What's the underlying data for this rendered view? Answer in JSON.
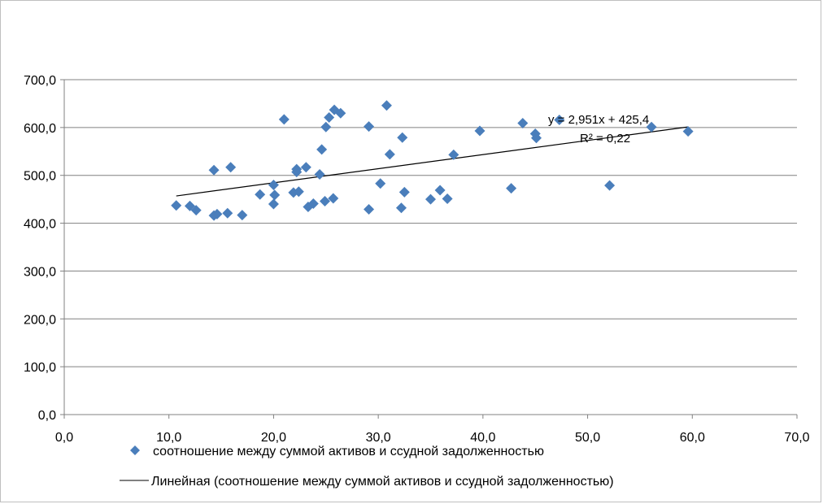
{
  "chart_data": {
    "type": "scatter",
    "title": "",
    "xlabel": "",
    "ylabel": "",
    "xlim": [
      0,
      70
    ],
    "ylim": [
      0,
      700
    ],
    "x_ticks": [
      "0,0",
      "10,0",
      "20,0",
      "30,0",
      "40,0",
      "50,0",
      "60,0",
      "70,0"
    ],
    "y_ticks": [
      "0,0",
      "100,0",
      "200,0",
      "300,0",
      "400,0",
      "500,0",
      "600,0",
      "700,0"
    ],
    "grid": "horizontal major gridlines",
    "legend_position": "bottom",
    "colors": {
      "marker": "#4a7ebb",
      "trendline": "#000000",
      "grid": "#808080"
    },
    "series": [
      {
        "name": "соотношение между суммой активов и ссудной задолженностью",
        "marker": "diamond",
        "points": [
          [
            10.7,
            437
          ],
          [
            12.0,
            436
          ],
          [
            12.6,
            427
          ],
          [
            14.3,
            511
          ],
          [
            14.3,
            416
          ],
          [
            14.6,
            419
          ],
          [
            15.6,
            421
          ],
          [
            15.9,
            517
          ],
          [
            17.0,
            417
          ],
          [
            18.7,
            460
          ],
          [
            20.0,
            480
          ],
          [
            20.0,
            440
          ],
          [
            20.1,
            459
          ],
          [
            21.0,
            617
          ],
          [
            21.9,
            464
          ],
          [
            22.2,
            513
          ],
          [
            22.2,
            507
          ],
          [
            22.4,
            466
          ],
          [
            23.1,
            517
          ],
          [
            23.3,
            434
          ],
          [
            23.8,
            441
          ],
          [
            24.4,
            502
          ],
          [
            24.6,
            554
          ],
          [
            24.9,
            446
          ],
          [
            25.0,
            601
          ],
          [
            25.3,
            621
          ],
          [
            25.7,
            452
          ],
          [
            25.8,
            637
          ],
          [
            26.4,
            630
          ],
          [
            29.1,
            602
          ],
          [
            29.1,
            429
          ],
          [
            30.2,
            483
          ],
          [
            30.8,
            646
          ],
          [
            31.1,
            544
          ],
          [
            32.2,
            432
          ],
          [
            32.3,
            579
          ],
          [
            32.5,
            465
          ],
          [
            35.0,
            450
          ],
          [
            35.9,
            469
          ],
          [
            36.6,
            451
          ],
          [
            37.2,
            543
          ],
          [
            39.7,
            593
          ],
          [
            42.7,
            473
          ],
          [
            43.8,
            609
          ],
          [
            45.0,
            587
          ],
          [
            45.1,
            578
          ],
          [
            47.3,
            616
          ],
          [
            52.1,
            479
          ],
          [
            56.1,
            601
          ],
          [
            59.6,
            592
          ]
        ]
      },
      {
        "name": "Линейная (соотношение  между суммой активов и ссудной задолженностью)",
        "type": "line",
        "slope": 2.951,
        "intercept": 425.4,
        "x_range": [
          10.7,
          59.6
        ]
      }
    ],
    "annotations": [
      "y = 2,951x + 425,4",
      "R² = 0,22"
    ]
  }
}
